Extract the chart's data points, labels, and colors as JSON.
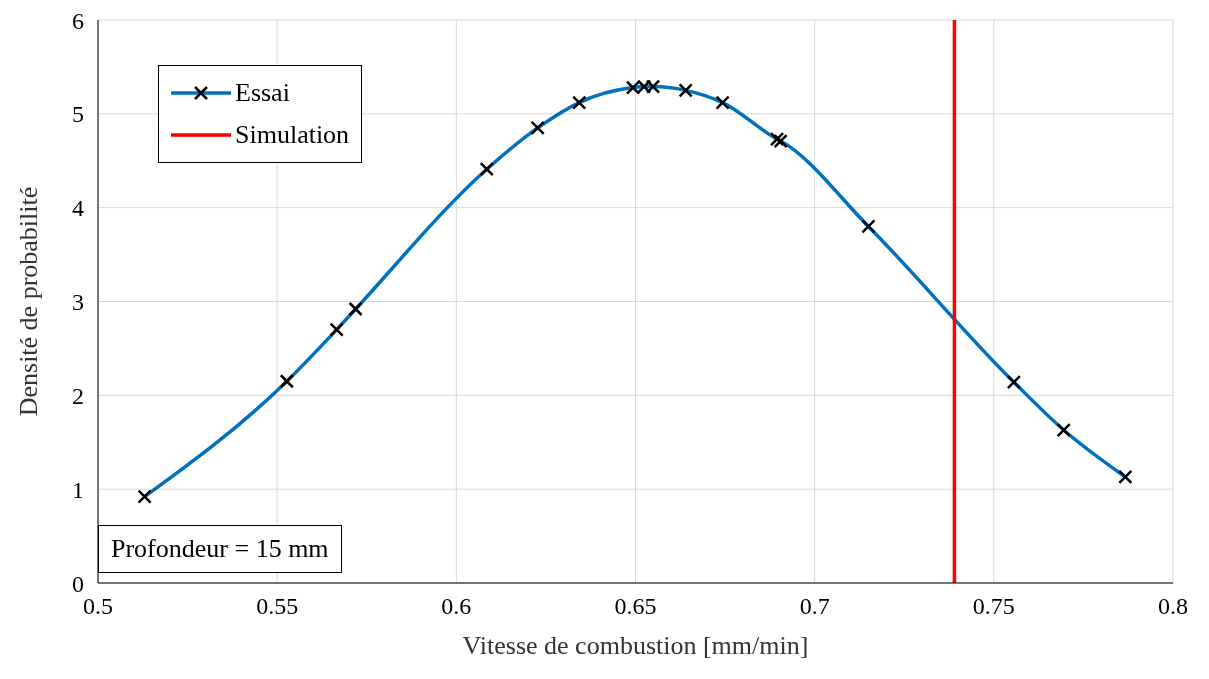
{
  "chart_data": {
    "type": "line",
    "xlabel": "Vitesse de combustion [mm/min]",
    "ylabel": "Densité de probabilité",
    "xlim": [
      0.5,
      0.8
    ],
    "xticks": [
      0.5,
      0.55,
      0.6,
      0.65,
      0.7,
      0.75,
      0.8
    ],
    "ylim": [
      0,
      6
    ],
    "yticks": [
      0,
      1,
      2,
      3,
      4,
      5,
      6
    ],
    "grid": true,
    "legend": "top left",
    "marker": "cross",
    "annotations": [
      "Profondeur = 15 mm"
    ],
    "series": [
      {
        "name": "Essai",
        "color": "#0070c0",
        "x": [
          0.513,
          0.5527,
          0.5666,
          0.5719,
          0.6085,
          0.6227,
          0.6343,
          0.6493,
          0.6524,
          0.6549,
          0.664,
          0.6743,
          0.6895,
          0.6905,
          0.715,
          0.7556,
          0.7695,
          0.7867
        ],
        "values": [
          0.92,
          2.15,
          2.7,
          2.92,
          4.41,
          4.85,
          5.12,
          5.28,
          5.29,
          5.29,
          5.25,
          5.12,
          4.73,
          4.71,
          3.8,
          2.14,
          1.63,
          1.13
        ]
      },
      {
        "name": "Simulation",
        "color": "#ff0000",
        "marker": "none",
        "x": [
          0.739,
          0.739
        ],
        "values": [
          0,
          6
        ]
      }
    ]
  }
}
